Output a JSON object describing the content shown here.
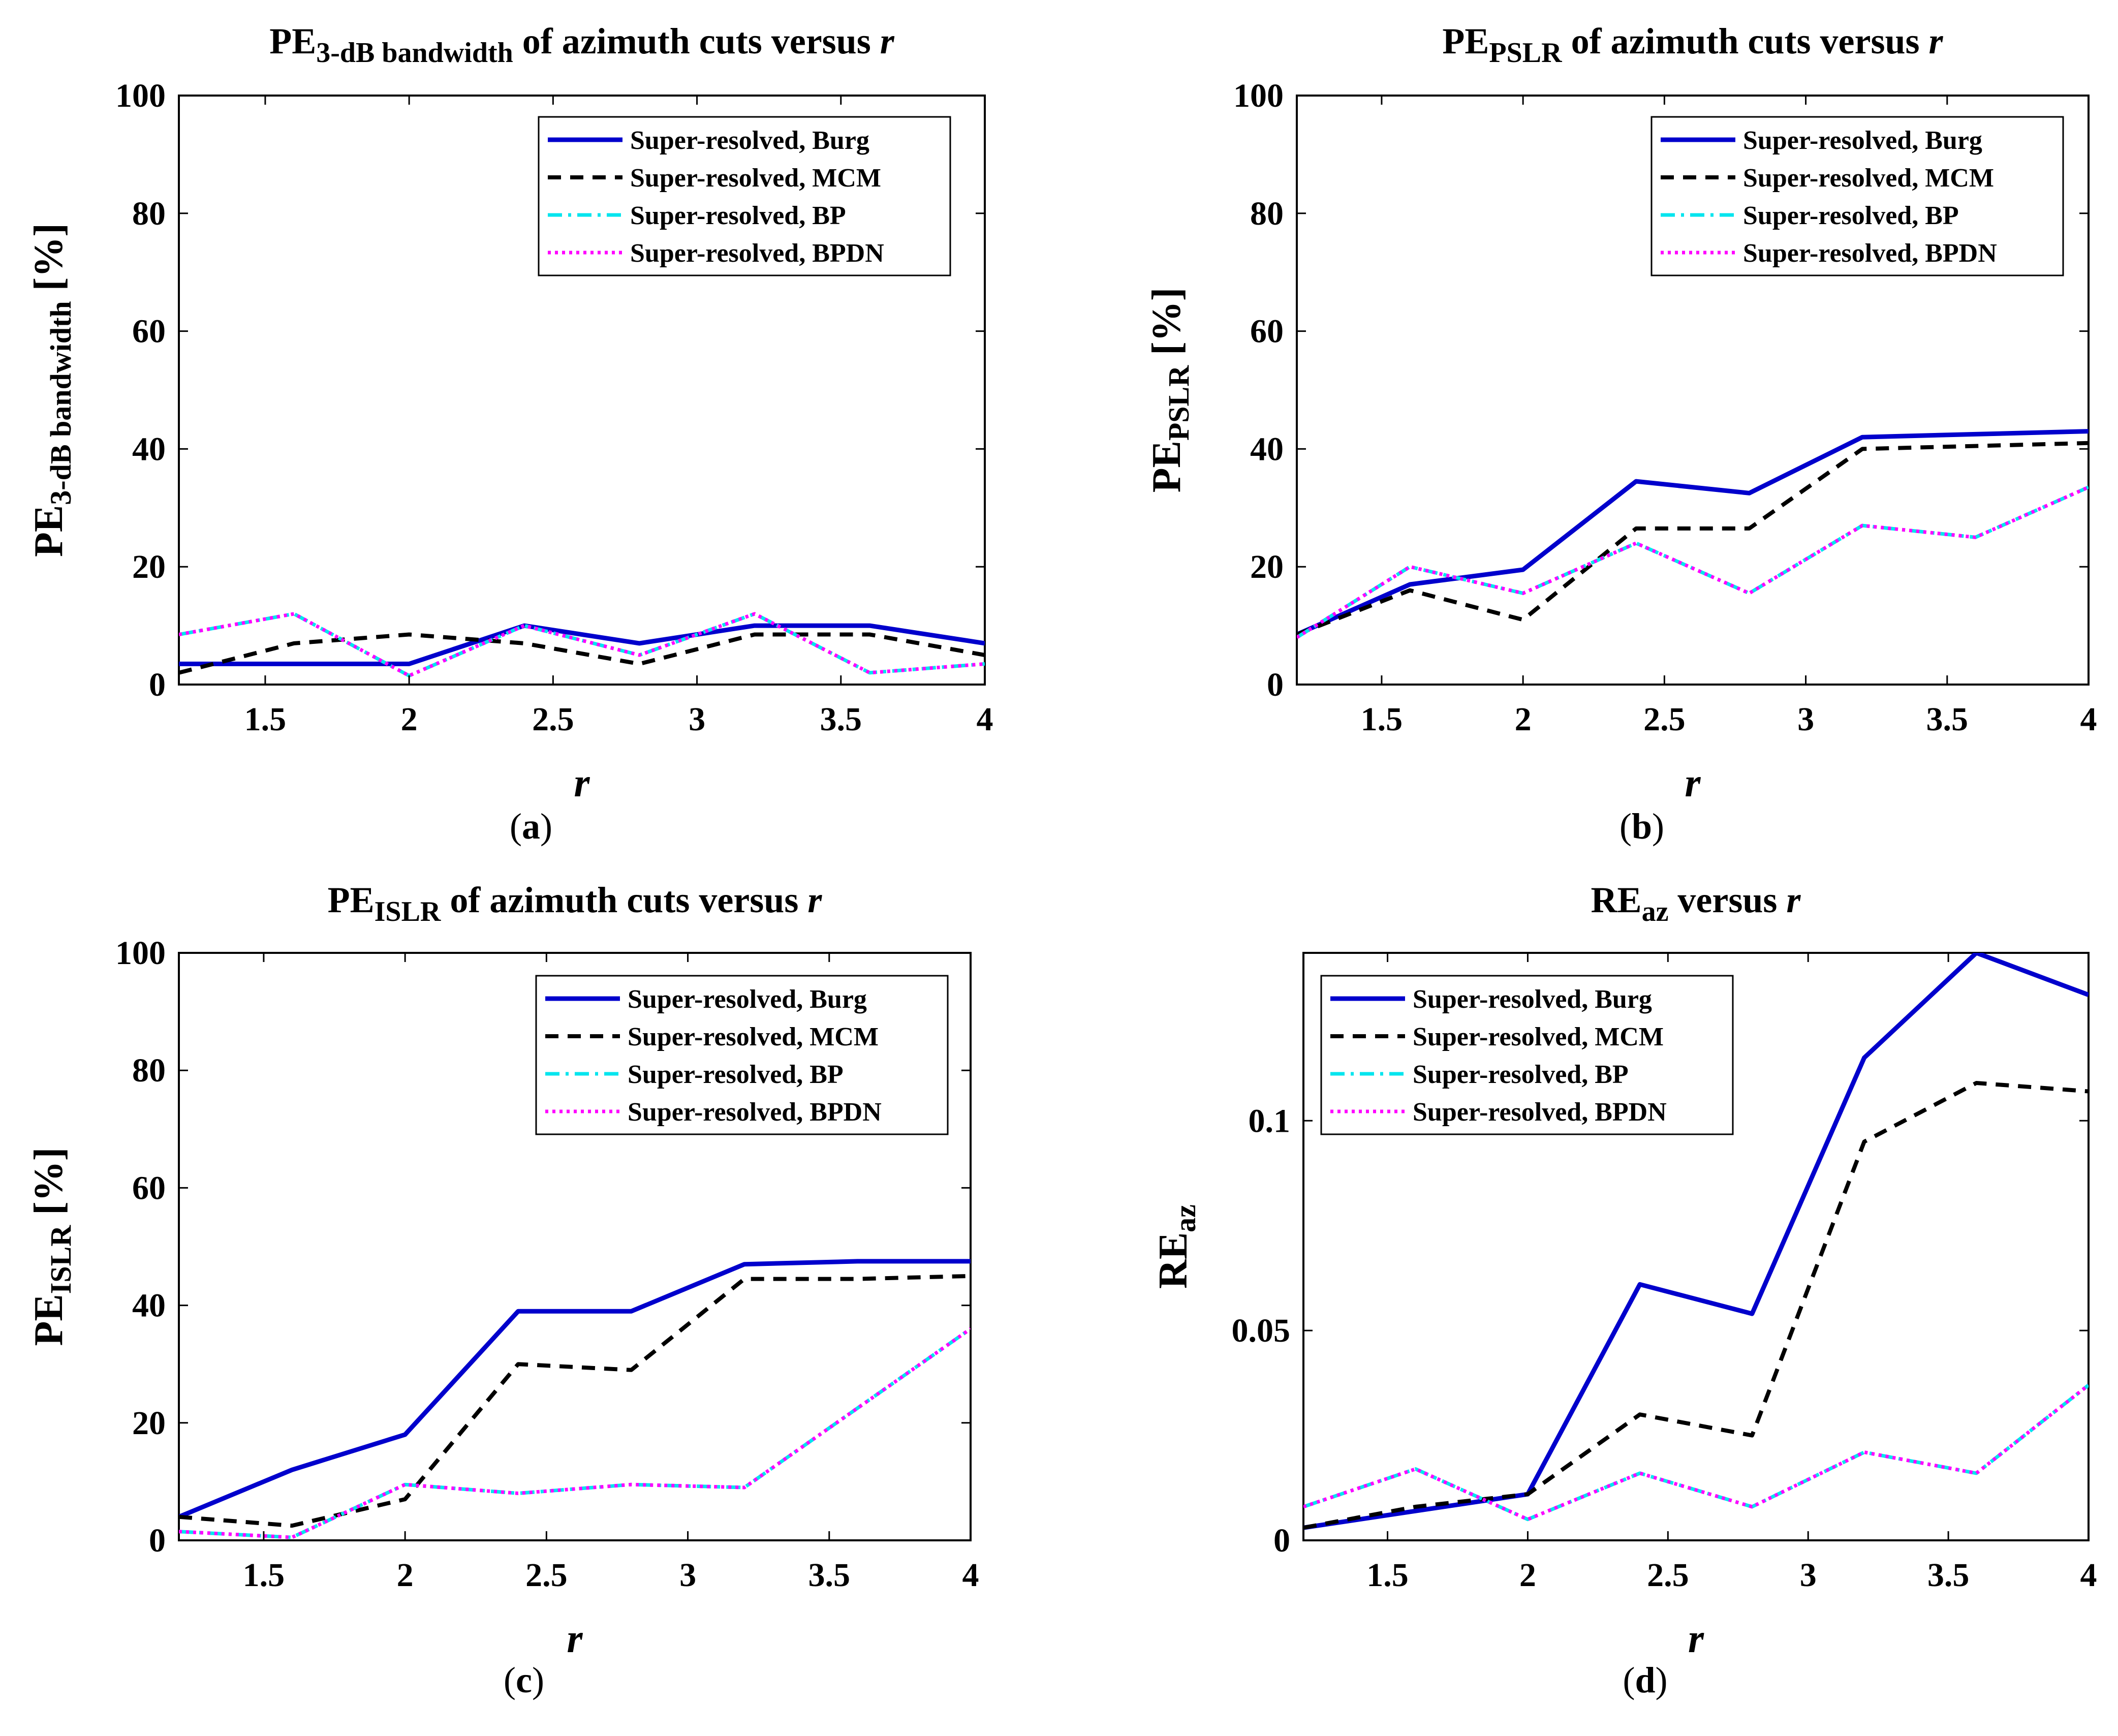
{
  "figure": {
    "captions": [
      "a",
      "b",
      "c",
      "d"
    ]
  },
  "colors": {
    "burg": "#0000cc",
    "mcm": "#000000",
    "bp": "#00e5ee",
    "bpdn": "#ff00ff"
  },
  "chart_data": [
    {
      "type": "line",
      "title": "PE3-dB bandwidth of azimuth cuts versus r",
      "title_main": "PE",
      "title_sub": "3-dB bandwidth",
      "title_rest": " of azimuth cuts versus ",
      "title_var": "r",
      "xlabel": "r",
      "ylabel_main": "PE",
      "ylabel_sub": "3-dB bandwidth",
      "ylabel_unit": " [%]",
      "xlim": [
        1.2,
        4
      ],
      "ylim": [
        0,
        100
      ],
      "xticks": [
        "1.5",
        "2",
        "2.5",
        "3",
        "3.5",
        "4"
      ],
      "yticks": [
        "0",
        "20",
        "40",
        "60",
        "80",
        "100"
      ],
      "legend_position": "top-right",
      "x": [
        1.2,
        1.6,
        2.0,
        2.4,
        2.8,
        3.2,
        3.6,
        4.0
      ],
      "series": [
        {
          "name": "Super-resolved, Burg",
          "style": "solid",
          "values": [
            3.5,
            3.5,
            3.5,
            10,
            7,
            10,
            10,
            7
          ]
        },
        {
          "name": "Super-resolved, MCM",
          "style": "dashed",
          "values": [
            2,
            7,
            8.5,
            7,
            3.5,
            8.5,
            8.5,
            5
          ]
        },
        {
          "name": "Super-resolved, BP",
          "style": "dashdot",
          "values": [
            8.5,
            12,
            1.5,
            10,
            5,
            12,
            2,
            3.5
          ]
        },
        {
          "name": "Super-resolved, BPDN",
          "style": "dotted",
          "values": [
            8.5,
            12,
            1.5,
            10,
            5,
            12,
            2,
            3.5
          ]
        }
      ]
    },
    {
      "type": "line",
      "title": "PEPSLR of azimuth cuts versus r",
      "title_main": "PE",
      "title_sub": "PSLR",
      "title_rest": " of azimuth cuts versus ",
      "title_var": "r",
      "xlabel": "r",
      "ylabel_main": "PE",
      "ylabel_sub": "PSLR",
      "ylabel_unit": " [%]",
      "xlim": [
        1.2,
        4
      ],
      "ylim": [
        0,
        100
      ],
      "xticks": [
        "1.5",
        "2",
        "2.5",
        "3",
        "3.5",
        "4"
      ],
      "yticks": [
        "0",
        "20",
        "40",
        "60",
        "80",
        "100"
      ],
      "legend_position": "top-right",
      "x": [
        1.2,
        1.6,
        2.0,
        2.4,
        2.8,
        3.2,
        3.6,
        4.0
      ],
      "series": [
        {
          "name": "Super-resolved, Burg",
          "style": "solid",
          "values": [
            8.5,
            17,
            19.5,
            34.5,
            32.5,
            42,
            42.5,
            43
          ]
        },
        {
          "name": "Super-resolved, MCM",
          "style": "dashed",
          "values": [
            8.5,
            16,
            11,
            26.5,
            26.5,
            40,
            40.5,
            41
          ]
        },
        {
          "name": "Super-resolved, BP",
          "style": "dashdot",
          "values": [
            8,
            20,
            15.5,
            24,
            15.5,
            27,
            25,
            33.5
          ]
        },
        {
          "name": "Super-resolved, BPDN",
          "style": "dotted",
          "values": [
            8,
            20,
            15.5,
            24,
            15.5,
            27,
            25,
            33.5
          ]
        }
      ]
    },
    {
      "type": "line",
      "title": "PEISLR of azimuth cuts versus r",
      "title_main": "PE",
      "title_sub": "ISLR",
      "title_rest": " of azimuth cuts versus ",
      "title_var": "r",
      "xlabel": "r",
      "ylabel_main": "PE",
      "ylabel_sub": "ISLR",
      "ylabel_unit": " [%]",
      "xlim": [
        1.2,
        4
      ],
      "ylim": [
        0,
        100
      ],
      "xticks": [
        "1.5",
        "2",
        "2.5",
        "3",
        "3.5",
        "4"
      ],
      "yticks": [
        "0",
        "20",
        "40",
        "60",
        "80",
        "100"
      ],
      "legend_position": "top-right",
      "x": [
        1.2,
        1.6,
        2.0,
        2.4,
        2.8,
        3.2,
        3.6,
        4.0
      ],
      "series": [
        {
          "name": "Super-resolved, Burg",
          "style": "solid",
          "values": [
            4,
            12,
            18,
            39,
            39,
            47,
            47.5,
            47.5
          ]
        },
        {
          "name": "Super-resolved, MCM",
          "style": "dashed",
          "values": [
            4,
            2.5,
            7,
            30,
            29,
            44.5,
            44.5,
            45
          ]
        },
        {
          "name": "Super-resolved, BP",
          "style": "dashdot",
          "values": [
            1.5,
            0.5,
            9.5,
            8,
            9.5,
            9,
            22.5,
            36
          ]
        },
        {
          "name": "Super-resolved, BPDN",
          "style": "dotted",
          "values": [
            1.5,
            0.5,
            9.5,
            8,
            9.5,
            9,
            22.5,
            36
          ]
        }
      ]
    },
    {
      "type": "line",
      "title": "REaz versus r",
      "title_main": "RE",
      "title_sub": "az",
      "title_rest": " versus ",
      "title_var": "r",
      "xlabel": "r",
      "ylabel_main": "RE",
      "ylabel_sub": "az",
      "ylabel_unit": "",
      "xlim": [
        1.2,
        4
      ],
      "ylim": [
        0,
        0.14
      ],
      "xticks": [
        "1.5",
        "2",
        "2.5",
        "3",
        "3.5",
        "4"
      ],
      "yticks": [
        "0",
        "0.05",
        "0.1"
      ],
      "legend_position": "top-left",
      "x": [
        1.2,
        1.6,
        2.0,
        2.4,
        2.8,
        3.2,
        3.6,
        4.0
      ],
      "series": [
        {
          "name": "Super-resolved, Burg",
          "style": "solid",
          "values": [
            0.003,
            0.007,
            0.011,
            0.061,
            0.054,
            0.115,
            0.14,
            0.13
          ]
        },
        {
          "name": "Super-resolved, MCM",
          "style": "dashed",
          "values": [
            0.003,
            0.008,
            0.011,
            0.03,
            0.025,
            0.095,
            0.109,
            0.107
          ]
        },
        {
          "name": "Super-resolved, BP",
          "style": "dashdot",
          "values": [
            0.008,
            0.017,
            0.005,
            0.016,
            0.008,
            0.021,
            0.016,
            0.037
          ]
        },
        {
          "name": "Super-resolved, BPDN",
          "style": "dotted",
          "values": [
            0.008,
            0.017,
            0.005,
            0.016,
            0.008,
            0.021,
            0.016,
            0.037
          ]
        }
      ]
    }
  ]
}
